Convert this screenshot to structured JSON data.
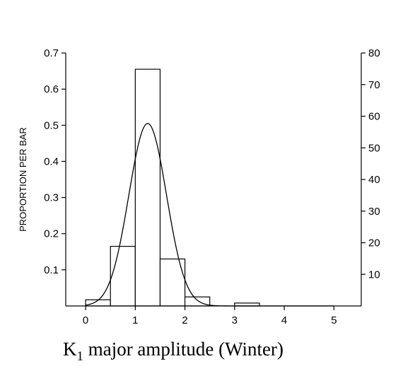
{
  "chart_data": {
    "type": "bar",
    "xlabel": {
      "prefix": "K",
      "subscript": "1",
      "rest": " major amplitude (Winter)"
    },
    "ylabel": "PROPORTION PER BAR",
    "xlim": [
      -0.4,
      5.55
    ],
    "ylim": [
      0,
      0.7
    ],
    "y2lim": [
      0,
      80
    ],
    "x_ticks": [
      0,
      1,
      2,
      3,
      4,
      5
    ],
    "x_tick_labels": [
      "0",
      "1",
      "2",
      "3",
      "4",
      "5"
    ],
    "y_ticks": [
      0.1,
      0.2,
      0.3,
      0.4,
      0.5,
      0.6,
      0.7
    ],
    "y_tick_labels": [
      "0.1",
      "0.2",
      "0.3",
      "0.4",
      "0.5",
      "0.6",
      "0.7"
    ],
    "y2_ticks": [
      10,
      20,
      30,
      40,
      50,
      60,
      70,
      80
    ],
    "y2_tick_labels": [
      "10",
      "20",
      "30",
      "40",
      "50",
      "60",
      "70",
      "80"
    ],
    "bin_edges": [
      0,
      0.5,
      1.0,
      1.5,
      2.0,
      2.5,
      3.0,
      3.5,
      4.0,
      4.5,
      5.0
    ],
    "values": [
      0.017,
      0.165,
      0.655,
      0.13,
      0.025,
      0.0,
      0.008,
      0.0,
      0.0,
      0.0
    ],
    "normal_curve": {
      "mean": 1.25,
      "sd": 0.38,
      "peak": 0.505
    },
    "grid": false,
    "legend": "none",
    "bar_fill": "#ffffff",
    "line_color": "#000000"
  }
}
